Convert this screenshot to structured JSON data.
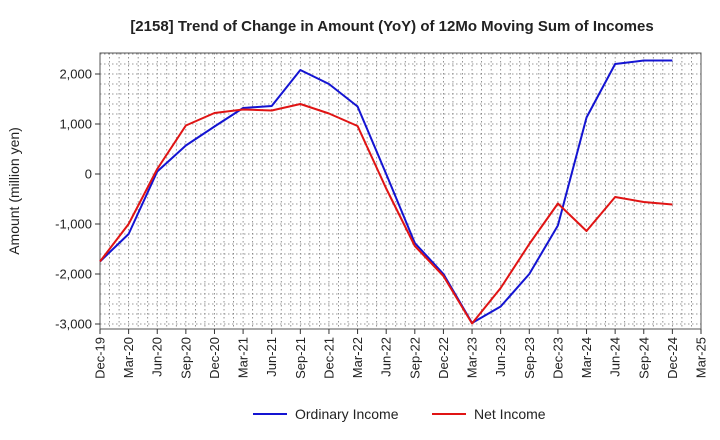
{
  "chart_data": {
    "type": "line",
    "title": "[2158]  Trend of Change in Amount (YoY) of 12Mo Moving Sum of Incomes",
    "xlabel": "",
    "ylabel": "Amount (million yen)",
    "ylim": [
      -3100,
      2420
    ],
    "yticks": [
      2000,
      1000,
      0,
      -1000,
      -2000,
      -3000
    ],
    "ytick_labels": [
      "2,000",
      "1,000",
      "0",
      "-1,000",
      "-2,000",
      "-3,000"
    ],
    "categories": [
      "Dec-19",
      "Mar-20",
      "Jun-20",
      "Sep-20",
      "Dec-20",
      "Mar-21",
      "Jun-21",
      "Sep-21",
      "Dec-21",
      "Mar-22",
      "Jun-22",
      "Sep-22",
      "Dec-22",
      "Mar-23",
      "Jun-23",
      "Sep-23",
      "Dec-23",
      "Mar-24",
      "Jun-24",
      "Sep-24",
      "Dec-24",
      "Mar-25"
    ],
    "grid": true,
    "legend_position": "bottom-center",
    "series": [
      {
        "name": "Ordinary Income",
        "color": "#1414d2",
        "values": [
          -1750,
          -1200,
          50,
          570,
          950,
          1320,
          1360,
          2080,
          1800,
          1350,
          0,
          -1380,
          -2000,
          -2980,
          -2650,
          -2000,
          -1030,
          1130,
          2200,
          2270,
          2270,
          null
        ]
      },
      {
        "name": "Net Income",
        "color": "#e01414",
        "values": [
          -1750,
          -1000,
          100,
          970,
          1220,
          1290,
          1270,
          1400,
          1210,
          960,
          -290,
          -1440,
          -2040,
          -2990,
          -2280,
          -1400,
          -590,
          -1140,
          -460,
          -560,
          -610,
          null
        ]
      }
    ]
  }
}
